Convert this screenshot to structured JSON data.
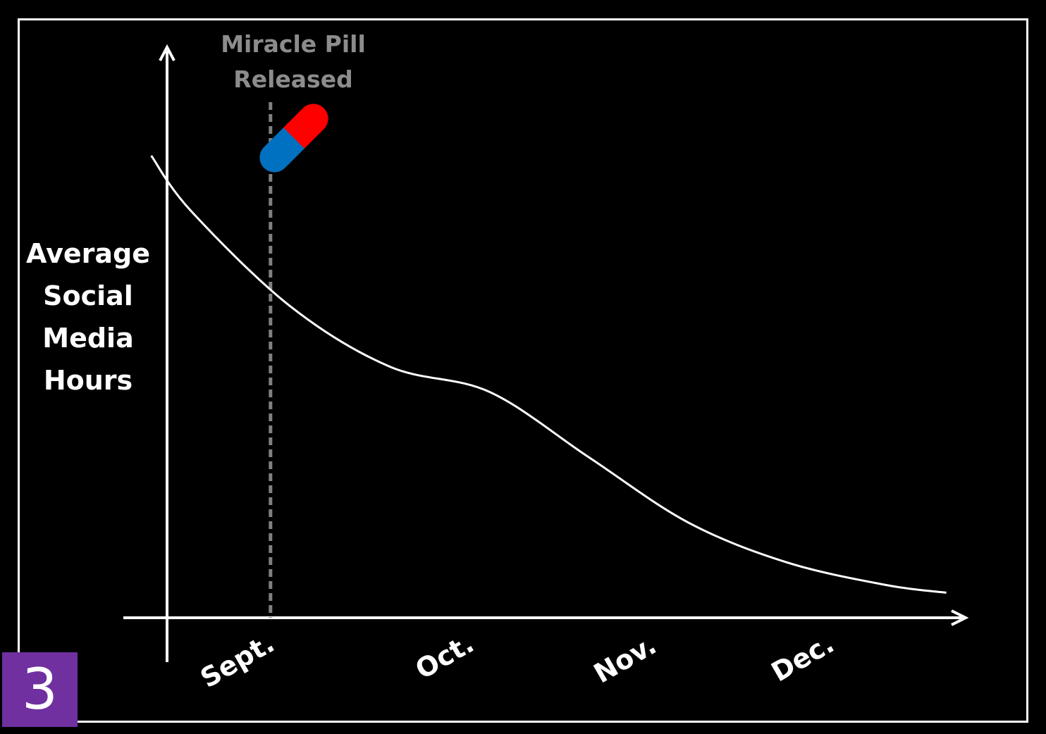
{
  "slide_number": "3",
  "chart_data": {
    "type": "line",
    "title": "",
    "xlabel": "",
    "ylabel": "Average Social Media Hours",
    "ylabel_lines": [
      "Average",
      "Social",
      "Media",
      "Hours"
    ],
    "categories": [
      "Sept.",
      "Oct.",
      "Nov.",
      "Dec."
    ],
    "x_range": [
      0.5,
      4.5
    ],
    "ylim": [
      0,
      10
    ],
    "series": [
      {
        "color": "#ffffff",
        "x": [
          0.3,
          0.5,
          1.0,
          1.5,
          2.0,
          2.5,
          3.0,
          3.5,
          4.0,
          4.3
        ],
        "y": [
          9.2,
          8.1,
          6.2,
          5.0,
          4.5,
          3.2,
          1.9,
          1.1,
          0.65,
          0.5
        ]
      }
    ],
    "event": {
      "x": 0.9,
      "label": "Miracle Pill Released",
      "label_lines": [
        "Miracle Pill",
        "Released"
      ],
      "line_color": "#808080",
      "icon": "pill-icon",
      "pill_colors": [
        "#ff0000",
        "#0070c0"
      ]
    },
    "grid": false,
    "legend": "none"
  }
}
